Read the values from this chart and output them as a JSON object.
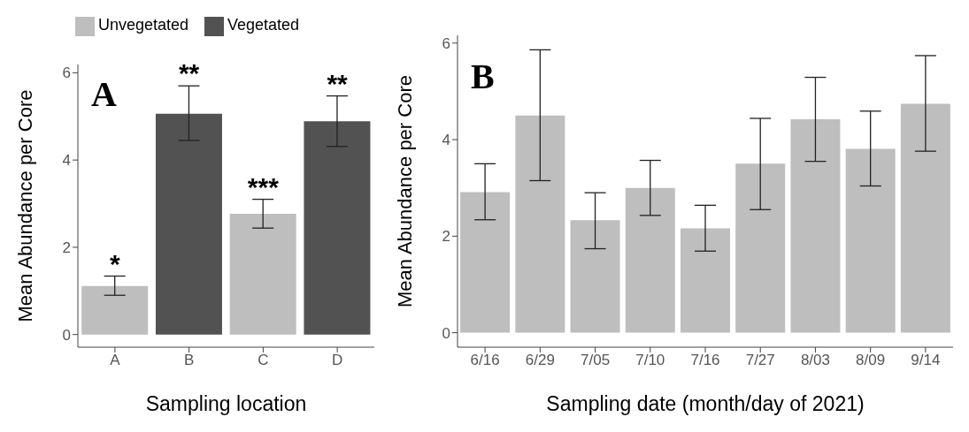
{
  "chart_data": [
    {
      "type": "bar",
      "xlabel": "Sampling location",
      "ylabel": "Mean Abundance per Core",
      "categories": [
        "A",
        "B",
        "C",
        "D"
      ],
      "stacked": true,
      "series": [
        {
          "name": "Unvegetated",
          "color": "#bebebe",
          "values": [
            1.11,
            null,
            2.77,
            null
          ],
          "errors": [
            [
              0.9,
              1.34
            ],
            null,
            [
              2.44,
              3.1
            ],
            null
          ]
        },
        {
          "name": "Vegetated",
          "color": "#525252",
          "values": [
            null,
            5.06,
            null,
            4.89
          ],
          "errors": [
            null,
            [
              4.45,
              5.7
            ],
            null,
            [
              4.31,
              5.47
            ]
          ]
        }
      ],
      "ylim": [
        -0.29,
        6.19
      ],
      "yticks": [
        0,
        2,
        4,
        6
      ],
      "grid": false,
      "legend": "top",
      "annotations": [
        "A",
        "*",
        "**",
        "***",
        "**"
      ]
    },
    {
      "type": "bar",
      "xlabel": "Sampling date (month/day of 2021)",
      "ylabel": "Mean Abundance per Core",
      "categories": [
        "6/16",
        "6/29",
        "7/05",
        "7/10",
        "7/16",
        "7/27",
        "8/03",
        "8/09",
        "9/14"
      ],
      "series": [
        {
          "color": "#bebebe",
          "values": [
            2.91,
            4.5,
            2.33,
            3.0,
            2.16,
            3.5,
            4.42,
            3.81,
            4.74
          ],
          "errors": [
            [
              2.34,
              3.5
            ],
            [
              3.15,
              5.86
            ],
            [
              1.74,
              2.9
            ],
            [
              2.43,
              3.57
            ],
            [
              1.69,
              2.64
            ],
            [
              2.55,
              4.44
            ],
            [
              3.55,
              5.29
            ],
            [
              3.04,
              4.59
            ],
            [
              3.76,
              5.74
            ]
          ]
        }
      ],
      "ylim": [
        -0.3,
        6.16
      ],
      "yticks": [
        0,
        2,
        4,
        6
      ],
      "grid": false,
      "legend": false,
      "annotations": [
        "B"
      ]
    }
  ]
}
